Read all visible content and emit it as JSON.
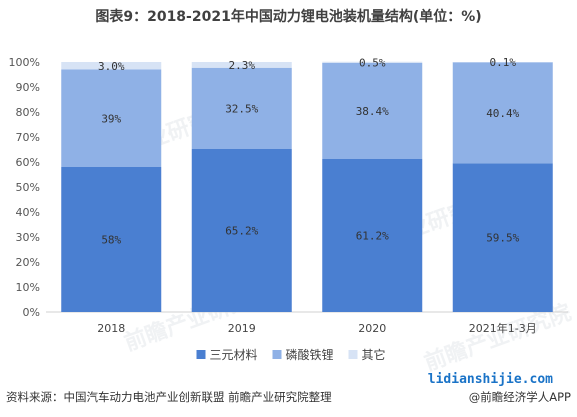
{
  "title": "图表9：2018-2021年中国动力锂电池装机量结构(单位：%)",
  "footer": {
    "source": "资料来源：中国汽车动力电池产业创新联盟 前瞻产业研究院整理",
    "site": "lidianshijie.com",
    "app": "@前瞻经济学人APP"
  },
  "watermark": "前瞻产业研究院",
  "chart_data": {
    "type": "bar",
    "stacked": true,
    "categories": [
      "2018",
      "2019",
      "2020",
      "2021年1-3月"
    ],
    "series": [
      {
        "name": "三元材料",
        "values": [
          58,
          65.2,
          61.2,
          59.5
        ],
        "labels": [
          "58%",
          "65.2%",
          "61.2%",
          "59.5%"
        ],
        "color": "#4a7fd1"
      },
      {
        "name": "磷酸铁锂",
        "values": [
          39,
          32.5,
          38.4,
          40.4
        ],
        "labels": [
          "39%",
          "32.5%",
          "38.4%",
          "40.4%"
        ],
        "color": "#8fb1e6"
      },
      {
        "name": "其它",
        "values": [
          3.0,
          2.3,
          0.5,
          0.1
        ],
        "labels": [
          "3.0%",
          "2.3%",
          "0.5%",
          "0.1%"
        ],
        "color": "#d7e3f5"
      }
    ],
    "yticks": [
      "0%",
      "10%",
      "20%",
      "30%",
      "40%",
      "50%",
      "60%",
      "70%",
      "80%",
      "90%",
      "100%"
    ],
    "ylim": [
      0,
      100
    ],
    "legend_position": "bottom-center",
    "grid": false
  }
}
